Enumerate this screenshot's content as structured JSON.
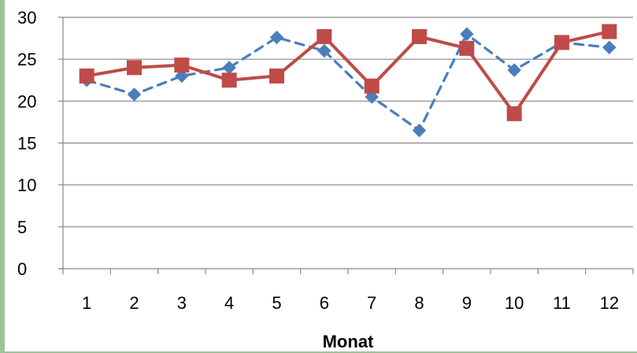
{
  "chart_data": {
    "type": "line",
    "title": "",
    "xlabel": "Monat",
    "ylabel": "",
    "categories": [
      "1",
      "2",
      "3",
      "4",
      "5",
      "6",
      "7",
      "8",
      "9",
      "10",
      "11",
      "12"
    ],
    "ylim": [
      0,
      30
    ],
    "yticks": [
      0,
      5,
      10,
      15,
      20,
      25,
      30
    ],
    "grid": true,
    "legend": "none",
    "series": [
      {
        "style": "dashed",
        "marker": "diamond",
        "color": "#4a7ebb",
        "values": [
          22.5,
          20.8,
          23.0,
          24.0,
          27.6,
          26.0,
          20.5,
          16.5,
          28.0,
          23.7,
          27.0,
          26.4
        ]
      },
      {
        "style": "solid",
        "marker": "square",
        "color": "#be4b48",
        "values": [
          23.0,
          24.0,
          24.3,
          22.5,
          23.0,
          27.7,
          21.8,
          27.7,
          26.3,
          18.5,
          27.0,
          28.3
        ]
      }
    ]
  }
}
